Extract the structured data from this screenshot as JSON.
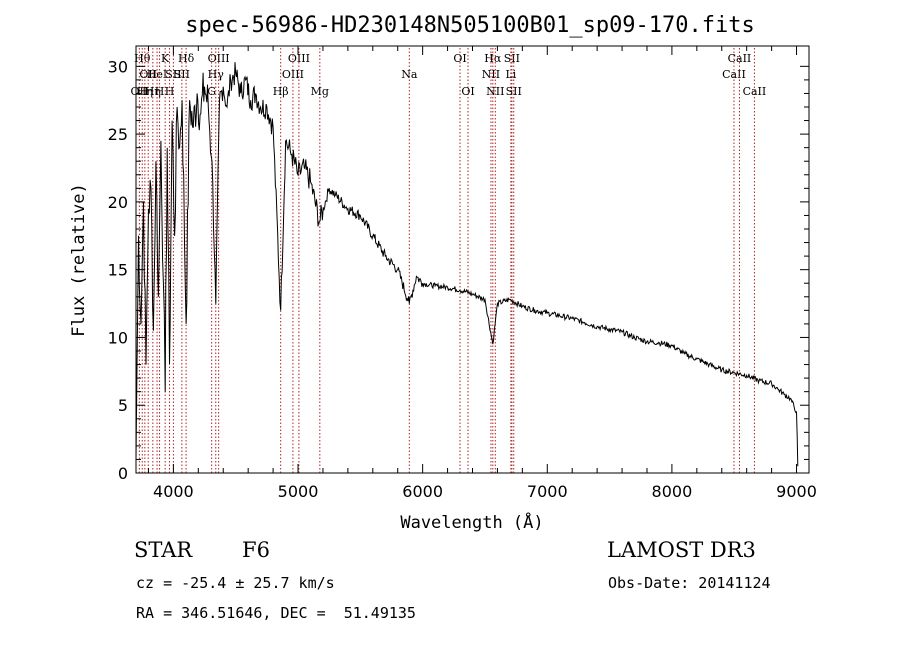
{
  "chart_data": {
    "type": "line",
    "title": "spec-56986-HD230148N505100B01_sp09-170.fits",
    "xlabel": "Wavelength (Å)",
    "ylabel": "Flux (relative)",
    "xlim": [
      3700,
      9100
    ],
    "ylim": [
      0,
      31.5
    ],
    "xticks": [
      4000,
      5000,
      6000,
      7000,
      8000,
      9000
    ],
    "yticks": [
      0,
      5,
      10,
      15,
      20,
      25,
      30
    ],
    "grid": false,
    "series": [
      {
        "name": "flux",
        "x": [
          3700,
          3720,
          3740,
          3760,
          3780,
          3800,
          3820,
          3840,
          3860,
          3880,
          3900,
          3920,
          3934,
          3950,
          3969,
          3990,
          4010,
          4030,
          4050,
          4070,
          4102,
          4130,
          4160,
          4190,
          4220,
          4250,
          4280,
          4310,
          4340,
          4370,
          4400,
          4430,
          4460,
          4500,
          4540,
          4580,
          4620,
          4660,
          4700,
          4750,
          4800,
          4861,
          4900,
          4950,
          5000,
          5050,
          5100,
          5172,
          5250,
          5300,
          5400,
          5500,
          5600,
          5700,
          5800,
          5893,
          5950,
          6000,
          6100,
          6200,
          6300,
          6400,
          6500,
          6563,
          6600,
          6700,
          6800,
          6900,
          7000,
          7100,
          7200,
          7300,
          7400,
          7500,
          7600,
          7700,
          7800,
          7900,
          8000,
          8100,
          8200,
          8300,
          8400,
          8500,
          8600,
          8700,
          8800,
          8850,
          8900,
          8950,
          9000,
          9010
        ],
        "y": [
          1.0,
          17.5,
          11.0,
          20.0,
          8.0,
          19.5,
          21.0,
          10.5,
          23.0,
          13.0,
          24.5,
          14.0,
          6.0,
          24.0,
          8.0,
          26.0,
          17.5,
          27.0,
          24.0,
          27.5,
          11.0,
          27.5,
          25.5,
          28.0,
          26.5,
          28.5,
          27.0,
          23.0,
          12.5,
          27.5,
          28.5,
          27.0,
          29.0,
          29.5,
          28.0,
          29.0,
          27.5,
          28.0,
          27.0,
          27.0,
          25.5,
          12.0,
          24.5,
          23.5,
          22.0,
          22.5,
          21.5,
          18.5,
          21.0,
          20.5,
          19.5,
          19.0,
          17.5,
          16.0,
          15.0,
          12.5,
          14.5,
          14.0,
          13.8,
          13.7,
          13.5,
          13.2,
          12.8,
          9.5,
          12.5,
          12.8,
          12.3,
          12.0,
          11.8,
          11.6,
          11.4,
          11.1,
          10.8,
          10.6,
          10.4,
          10.0,
          9.7,
          9.6,
          9.4,
          8.8,
          8.4,
          8.0,
          7.6,
          7.4,
          7.2,
          6.8,
          6.6,
          6.2,
          5.8,
          5.5,
          4.5,
          0.5
        ]
      }
    ],
    "lines": [
      {
        "wl": 3727,
        "label": "OII",
        "row": 3
      },
      {
        "wl": 3750,
        "label": "Hθ",
        "row": 1
      },
      {
        "wl": 3771,
        "label": "Hη",
        "row": 3
      },
      {
        "wl": 3798,
        "label": "OII",
        "row": 2
      },
      {
        "wl": 3835,
        "label": "Hη",
        "row": 3
      },
      {
        "wl": 3869,
        "label": "HeI",
        "row": 2
      },
      {
        "wl": 3889,
        "label": "H",
        "row": 3
      },
      {
        "wl": 3934,
        "label": "K",
        "row": 1
      },
      {
        "wl": 3969,
        "label": "H",
        "row": 3
      },
      {
        "wl": 4000,
        "label": "SII",
        "row": 2
      },
      {
        "wl": 4102,
        "label": "Hδ",
        "row": 1
      },
      {
        "wl": 4068,
        "label": "SII",
        "row": 2
      },
      {
        "wl": 4307,
        "label": "G",
        "row": 3
      },
      {
        "wl": 4340,
        "label": "Hγ",
        "row": 2
      },
      {
        "wl": 4363,
        "label": "OIII",
        "row": 1
      },
      {
        "wl": 4861,
        "label": "Hβ",
        "row": 3
      },
      {
        "wl": 4959,
        "label": "OIII",
        "row": 2
      },
      {
        "wl": 5007,
        "label": "OIII",
        "row": 1
      },
      {
        "wl": 5175,
        "label": "Mg",
        "row": 3
      },
      {
        "wl": 5893,
        "label": "Na",
        "row": 2
      },
      {
        "wl": 6300,
        "label": "OI",
        "row": 1
      },
      {
        "wl": 6364,
        "label": "OI",
        "row": 3
      },
      {
        "wl": 6548,
        "label": "NII",
        "row": 2
      },
      {
        "wl": 6563,
        "label": "Hα",
        "row": 1
      },
      {
        "wl": 6583,
        "label": "NII",
        "row": 3
      },
      {
        "wl": 6708,
        "label": "Li",
        "row": 2
      },
      {
        "wl": 6716,
        "label": "SII",
        "row": 1
      },
      {
        "wl": 6731,
        "label": "SII",
        "row": 3
      },
      {
        "wl": 8498,
        "label": "CaII",
        "row": 2
      },
      {
        "wl": 8542,
        "label": "CaII",
        "row": 1
      },
      {
        "wl": 8662,
        "label": "CaII",
        "row": 3
      }
    ]
  },
  "info": {
    "class_label": "STAR",
    "subclass": "F6",
    "survey": "LAMOST DR3",
    "cz": "cz = -25.4 ± 25.7 km/s",
    "obs_date": "Obs-Date: 20141124",
    "coords": "RA = 346.51646, DEC =  51.49135"
  },
  "colors": {
    "spectrum": "#000000",
    "line_markers": "#b22222",
    "frame": "#000000"
  }
}
